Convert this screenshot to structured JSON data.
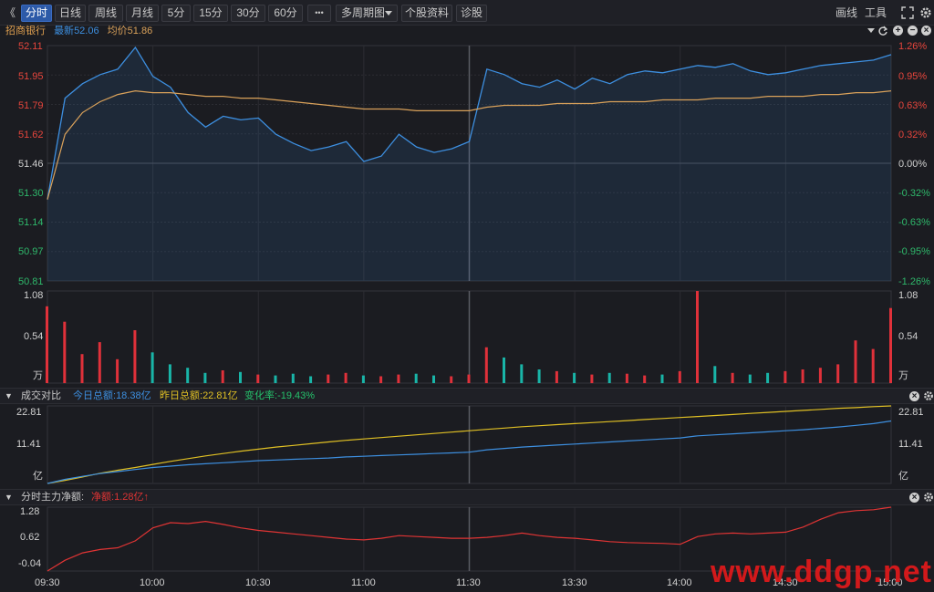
{
  "toolbar": {
    "back_glyph": "《",
    "tabs": [
      "分时",
      "日线",
      "周线",
      "月线",
      "5分",
      "15分",
      "30分",
      "60分"
    ],
    "more_glyph": "•••",
    "multi_period": "多周期图",
    "stock_info": "个股资料",
    "diagnose": "诊股",
    "draw_line": "画线",
    "tools": "工具",
    "expand_icon": "expand-icon",
    "settings_icon": "settings-icon"
  },
  "legend": {
    "stock_name": "招商银行",
    "latest_label": "最新",
    "latest_value": "52.06",
    "avg_label": "均价",
    "avg_value": "51.86"
  },
  "price_axis": {
    "left_labels": [
      "52.11",
      "51.95",
      "51.79",
      "51.62",
      "51.46",
      "51.30",
      "51.14",
      "50.97",
      "50.81"
    ],
    "right_labels": [
      "1.26%",
      "0.95%",
      "0.63%",
      "0.32%",
      "0.00%",
      "-0.32%",
      "-0.63%",
      "-0.95%",
      "-1.26%"
    ]
  },
  "volume_axis": {
    "labels": [
      "1.08",
      "0.54"
    ],
    "unit": "万"
  },
  "compare_panel": {
    "title": "成交对比",
    "today_label": "今日总额:",
    "today_value": "18.38亿",
    "yesterday_label": "昨日总额:",
    "yesterday_value": "22.81亿",
    "change_label": "变化率:",
    "change_value": "-19.43%",
    "axis_labels": [
      "22.81",
      "11.41"
    ],
    "unit": "亿"
  },
  "flow_panel": {
    "title": "分时主力净额:",
    "net_label": "净额:",
    "net_value": "1.28亿",
    "arrow": "↑",
    "axis_labels": [
      "1.28",
      "0.62",
      "-0.04"
    ]
  },
  "time_axis": [
    "09:30",
    "10:00",
    "10:30",
    "11:00",
    "11:30",
    "13:30",
    "14:00",
    "14:30",
    "15:00"
  ],
  "watermark": "www.ddgp.net",
  "colors": {
    "price_line": "#3d8fe0",
    "avg_line": "#d9a15a",
    "up": "#e0313a",
    "down": "#19b5a8",
    "today": "#3d8fe0",
    "yesterday": "#e0c024",
    "flow": "#e03434",
    "accent": "#2d5aa8"
  },
  "chart_data": [
    {
      "type": "line",
      "name": "price",
      "ylim": [
        50.81,
        52.11
      ],
      "prev_close": 51.46,
      "x": [
        "09:30",
        "09:35",
        "09:40",
        "09:45",
        "09:50",
        "09:55",
        "10:00",
        "10:05",
        "10:10",
        "10:15",
        "10:20",
        "10:25",
        "10:30",
        "10:35",
        "10:40",
        "10:45",
        "10:50",
        "10:55",
        "11:00",
        "11:05",
        "11:10",
        "11:15",
        "11:20",
        "11:25",
        "11:30",
        "13:05",
        "13:10",
        "13:15",
        "13:20",
        "13:25",
        "13:30",
        "13:35",
        "13:40",
        "13:45",
        "13:50",
        "13:55",
        "14:00",
        "14:05",
        "14:10",
        "14:15",
        "14:20",
        "14:25",
        "14:30",
        "14:35",
        "14:40",
        "14:45",
        "14:50",
        "14:55",
        "15:00"
      ],
      "series": [
        {
          "name": "最新",
          "values": [
            51.26,
            51.82,
            51.9,
            51.95,
            51.98,
            52.1,
            51.94,
            51.88,
            51.74,
            51.66,
            51.72,
            51.7,
            51.71,
            51.62,
            51.57,
            51.53,
            51.55,
            51.58,
            51.47,
            51.5,
            51.62,
            51.55,
            51.52,
            51.54,
            51.58,
            51.98,
            51.95,
            51.9,
            51.88,
            51.92,
            51.87,
            51.93,
            51.9,
            51.95,
            51.97,
            51.96,
            51.98,
            52.0,
            51.99,
            52.01,
            51.97,
            51.95,
            51.96,
            51.98,
            52.0,
            52.01,
            52.02,
            52.03,
            52.06
          ]
        },
        {
          "name": "均价",
          "values": [
            51.26,
            51.62,
            51.74,
            51.8,
            51.84,
            51.86,
            51.85,
            51.85,
            51.84,
            51.83,
            51.83,
            51.82,
            51.82,
            51.81,
            51.8,
            51.79,
            51.78,
            51.77,
            51.76,
            51.76,
            51.76,
            51.75,
            51.75,
            51.75,
            51.75,
            51.77,
            51.78,
            51.78,
            51.78,
            51.79,
            51.79,
            51.79,
            51.8,
            51.8,
            51.8,
            51.81,
            51.81,
            51.81,
            51.82,
            51.82,
            51.82,
            51.83,
            51.83,
            51.83,
            51.84,
            51.84,
            51.85,
            51.85,
            51.86
          ]
        }
      ]
    },
    {
      "type": "bar",
      "name": "volume",
      "ylim": [
        0,
        1.08
      ],
      "values": [
        0.9,
        0.72,
        0.34,
        0.48,
        0.28,
        0.62,
        0.36,
        0.22,
        0.18,
        0.12,
        0.15,
        0.13,
        0.1,
        0.09,
        0.11,
        0.08,
        0.1,
        0.12,
        0.09,
        0.08,
        0.1,
        0.11,
        0.09,
        0.08,
        0.1,
        0.42,
        0.3,
        0.22,
        0.16,
        0.14,
        0.12,
        0.1,
        0.12,
        0.11,
        0.09,
        0.1,
        0.14,
        1.08,
        0.2,
        0.12,
        0.1,
        0.12,
        0.14,
        0.16,
        0.18,
        0.22,
        0.5,
        0.4,
        0.88
      ]
    },
    {
      "type": "line",
      "name": "turnover_compare",
      "ylim": [
        0,
        22.81
      ],
      "series": [
        {
          "name": "今日总额",
          "values": [
            0,
            1.2,
            2.1,
            2.9,
            3.5,
            4.1,
            4.7,
            5.1,
            5.5,
            5.8,
            6.1,
            6.4,
            6.7,
            6.9,
            7.1,
            7.3,
            7.5,
            7.8,
            8.0,
            8.2,
            8.4,
            8.6,
            8.8,
            9.0,
            9.2,
            9.9,
            10.3,
            10.7,
            11.0,
            11.3,
            11.6,
            11.9,
            12.2,
            12.5,
            12.8,
            13.1,
            13.4,
            14.0,
            14.3,
            14.6,
            14.9,
            15.2,
            15.5,
            15.8,
            16.2,
            16.6,
            17.1,
            17.6,
            18.38
          ]
        },
        {
          "name": "昨日总额",
          "values": [
            0,
            0.9,
            1.9,
            3.0,
            3.9,
            4.7,
            5.6,
            6.5,
            7.3,
            8.1,
            8.8,
            9.5,
            10.1,
            10.7,
            11.2,
            11.7,
            12.2,
            12.7,
            13.1,
            13.5,
            13.9,
            14.3,
            14.7,
            15.1,
            15.5,
            15.9,
            16.3,
            16.7,
            17.0,
            17.3,
            17.6,
            17.9,
            18.2,
            18.5,
            18.8,
            19.1,
            19.4,
            19.7,
            20.0,
            20.3,
            20.6,
            20.9,
            21.2,
            21.5,
            21.8,
            22.1,
            22.3,
            22.6,
            22.81
          ]
        }
      ]
    },
    {
      "type": "line",
      "name": "main_net_flow",
      "ylim": [
        -0.2,
        1.28
      ],
      "series": [
        {
          "name": "分时主力净额",
          "values": [
            -0.2,
            0.05,
            0.22,
            0.3,
            0.34,
            0.5,
            0.8,
            0.92,
            0.9,
            0.95,
            0.88,
            0.8,
            0.74,
            0.7,
            0.66,
            0.62,
            0.58,
            0.54,
            0.52,
            0.56,
            0.62,
            0.6,
            0.58,
            0.56,
            0.56,
            0.58,
            0.62,
            0.68,
            0.62,
            0.58,
            0.56,
            0.52,
            0.48,
            0.46,
            0.45,
            0.44,
            0.42,
            0.6,
            0.66,
            0.68,
            0.66,
            0.68,
            0.7,
            0.82,
            1.0,
            1.15,
            1.2,
            1.22,
            1.28
          ]
        }
      ]
    }
  ]
}
